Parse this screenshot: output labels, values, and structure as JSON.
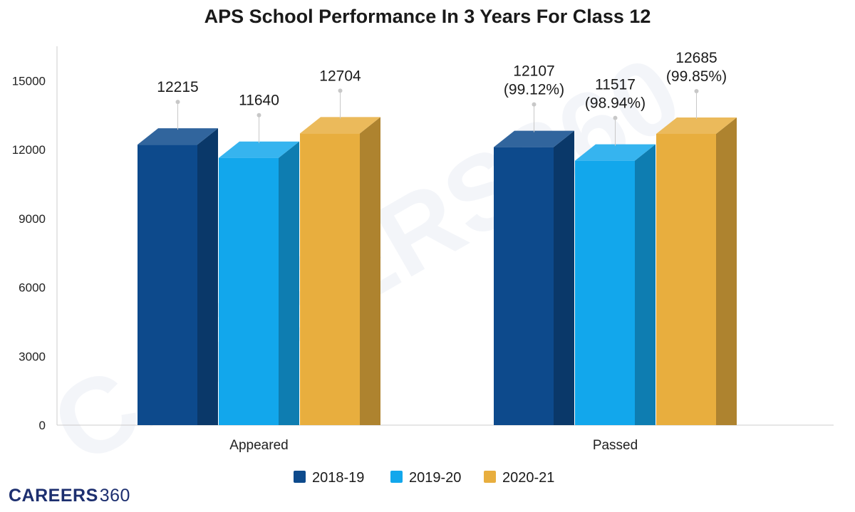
{
  "brand": {
    "main": "CAREERS",
    "suffix": "360",
    "watermark": "CAREERS360"
  },
  "colors": {
    "2018-19": "#0d4a8c",
    "2019-20": "#12a7ec",
    "2020-21": "#e8ae3e",
    "axis": "#cccccc",
    "grid": "#eaeaea"
  },
  "chart_data": {
    "type": "bar",
    "title": "APS School Performance In 3 Years For Class 12",
    "xlabel": "",
    "ylabel": "",
    "categories": [
      "Appeared",
      "Passed"
    ],
    "series": [
      {
        "name": "2018-19",
        "values": [
          12215,
          12107
        ],
        "labels": [
          [
            "12215"
          ],
          [
            "12107",
            "(99.12%)"
          ]
        ]
      },
      {
        "name": "2019-20",
        "values": [
          11640,
          11517
        ],
        "labels": [
          [
            "11640"
          ],
          [
            "11517",
            "(98.94%)"
          ]
        ]
      },
      {
        "name": "2020-21",
        "values": [
          12704,
          12685
        ],
        "labels": [
          [
            "12704"
          ],
          [
            "12685",
            "(99.85%)"
          ]
        ]
      }
    ],
    "ylim": [
      0,
      16500
    ],
    "yticks": [
      0,
      3000,
      6000,
      9000,
      12000,
      15000
    ],
    "grid": false,
    "legend_position": "bottom"
  }
}
